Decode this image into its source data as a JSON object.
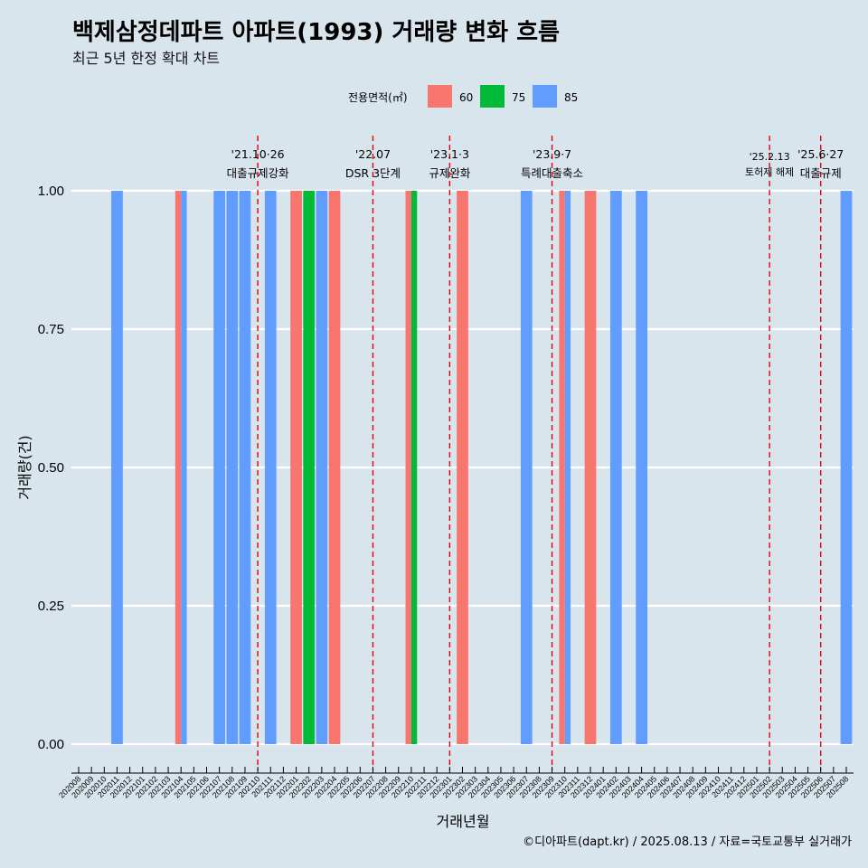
{
  "title": "백제삼정데파트 아파트(1993) 거래량 변화 흐름",
  "subtitle": "최근 5년 한정 확대 차트",
  "caption": "©디아파트(dapt.kr) / 2025.08.13 / 자료=국토교통부 실거래가",
  "legend": {
    "title": "전용면적(㎡)",
    "items": [
      {
        "label": "60",
        "color": "#f8766d"
      },
      {
        "label": "75",
        "color": "#00ba38"
      },
      {
        "label": "85",
        "color": "#619cff"
      }
    ]
  },
  "chart_data": {
    "type": "bar",
    "stacking": "dodge",
    "xlabel": "거래년월",
    "ylabel": "거래량(건)",
    "ylim": [
      0,
      1
    ],
    "yticks": [
      "0.00",
      "0.25",
      "0.50",
      "0.75",
      "1.00"
    ],
    "grid": "horizontal",
    "legend_position": "top",
    "categories": [
      "202008",
      "202009",
      "202010",
      "202011",
      "202012",
      "202101",
      "202102",
      "202103",
      "202104",
      "202105",
      "202106",
      "202107",
      "202108",
      "202109",
      "202110",
      "202111",
      "202112",
      "202201",
      "202202",
      "202203",
      "202204",
      "202205",
      "202206",
      "202207",
      "202208",
      "202209",
      "202210",
      "202211",
      "202212",
      "202301",
      "202302",
      "202303",
      "202304",
      "202305",
      "202306",
      "202307",
      "202308",
      "202309",
      "202310",
      "202311",
      "202312",
      "202401",
      "202402",
      "202403",
      "202404",
      "202405",
      "202406",
      "202407",
      "202408",
      "202409",
      "202410",
      "202411",
      "202412",
      "202501",
      "202502",
      "202503",
      "202504",
      "202505",
      "202506",
      "202507",
      "202508"
    ],
    "series": [
      {
        "name": "60",
        "color": "#f8766d",
        "points": [
          {
            "month": "202104",
            "value": 1
          },
          {
            "month": "202201",
            "value": 1
          },
          {
            "month": "202204",
            "value": 1
          },
          {
            "month": "202210",
            "value": 1
          },
          {
            "month": "202302",
            "value": 1
          },
          {
            "month": "202310",
            "value": 1
          },
          {
            "month": "202312",
            "value": 1
          }
        ]
      },
      {
        "name": "75",
        "color": "#00ba38",
        "points": [
          {
            "month": "202202",
            "value": 1
          },
          {
            "month": "202210",
            "value": 1
          }
        ]
      },
      {
        "name": "85",
        "color": "#619cff",
        "points": [
          {
            "month": "202011",
            "value": 1
          },
          {
            "month": "202104",
            "value": 1
          },
          {
            "month": "202107",
            "value": 1
          },
          {
            "month": "202108",
            "value": 1
          },
          {
            "month": "202109",
            "value": 1
          },
          {
            "month": "202111",
            "value": 1
          },
          {
            "month": "202203",
            "value": 1
          },
          {
            "month": "202307",
            "value": 1
          },
          {
            "month": "202310",
            "value": 1
          },
          {
            "month": "202402",
            "value": 1
          },
          {
            "month": "202404",
            "value": 1
          },
          {
            "month": "202508",
            "value": 1
          }
        ]
      }
    ],
    "events": [
      {
        "month": "202110",
        "date": "'21.10·26",
        "label": "대출규제강화"
      },
      {
        "month": "202207",
        "date": "'22.07",
        "label": "DSR 3단계"
      },
      {
        "month": "202301",
        "date": "'23.1·3",
        "label": "규제완화"
      },
      {
        "month": "202309",
        "date": "'23.9·7",
        "label": "특례대출축소"
      },
      {
        "month": "202502",
        "date": "'25.2.13",
        "label": "토허제 해제"
      },
      {
        "month": "202506",
        "date": "'25.6·27",
        "label": "대출규제"
      }
    ]
  }
}
